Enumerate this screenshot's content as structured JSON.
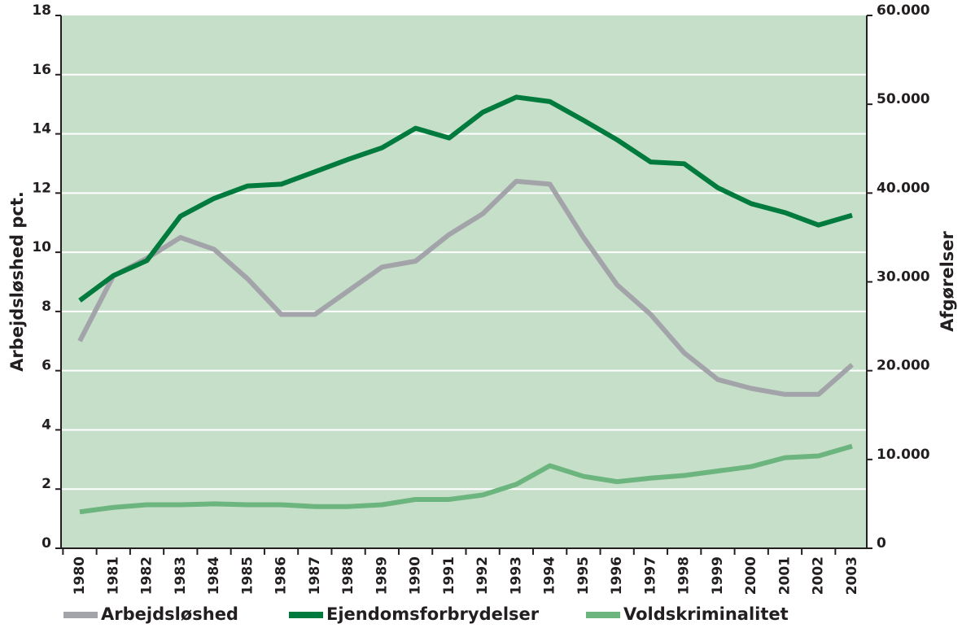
{
  "chart_data": {
    "type": "line",
    "x": [
      1980,
      1981,
      1982,
      1983,
      1984,
      1985,
      1986,
      1987,
      1988,
      1989,
      1990,
      1991,
      1992,
      1993,
      1994,
      1995,
      1996,
      1997,
      1998,
      1999,
      2000,
      2001,
      2002,
      2003
    ],
    "y_label": "Arbejdsløshed pct.",
    "y2_label": "Afgørelser",
    "ylim": [
      0,
      18
    ],
    "yticks": [
      0,
      2,
      4,
      6,
      8,
      10,
      12,
      14,
      16,
      18
    ],
    "y2lim": [
      0,
      60000
    ],
    "y2ticks": [
      0,
      {
        "value": 10000,
        "label": "10.000"
      },
      {
        "value": 20000,
        "label": "20.000"
      },
      {
        "value": 30000,
        "label": "30.000"
      },
      {
        "value": 40000,
        "label": "40.000"
      },
      {
        "value": 50000,
        "label": "50.000"
      },
      {
        "value": 60000,
        "label": "60.000"
      }
    ],
    "grid": true,
    "legend": "bottom",
    "series": [
      {
        "name": "Arbejdsløshed",
        "color": "#a3a3aa",
        "values": [
          7.0,
          9.2,
          9.8,
          10.5,
          10.1,
          9.1,
          7.9,
          7.9,
          8.7,
          9.5,
          9.7,
          10.6,
          11.3,
          12.4,
          12.3,
          10.5,
          8.9,
          7.9,
          6.6,
          5.7,
          5.4,
          5.2,
          5.2,
          6.2
        ]
      },
      {
        "name": "Ejendomsforbrydelser",
        "color": "#007a3d",
        "axis": "y2",
        "values": [
          27900,
          30700,
          32400,
          37400,
          39400,
          40800,
          41000,
          42400,
          43800,
          45100,
          47300,
          46200,
          49100,
          50800,
          50300,
          48200,
          46000,
          43500,
          43300,
          40600,
          38800,
          37800,
          36400,
          37500
        ]
      },
      {
        "name": "Voldskriminalitet",
        "color": "#6db57f",
        "axis": "y2",
        "values": [
          4100,
          4600,
          4900,
          4900,
          5000,
          4900,
          4900,
          4700,
          4700,
          4900,
          5500,
          5500,
          6000,
          7200,
          9300,
          8100,
          7500,
          7900,
          8200,
          8700,
          9200,
          10200,
          10400,
          11500
        ]
      }
    ]
  }
}
